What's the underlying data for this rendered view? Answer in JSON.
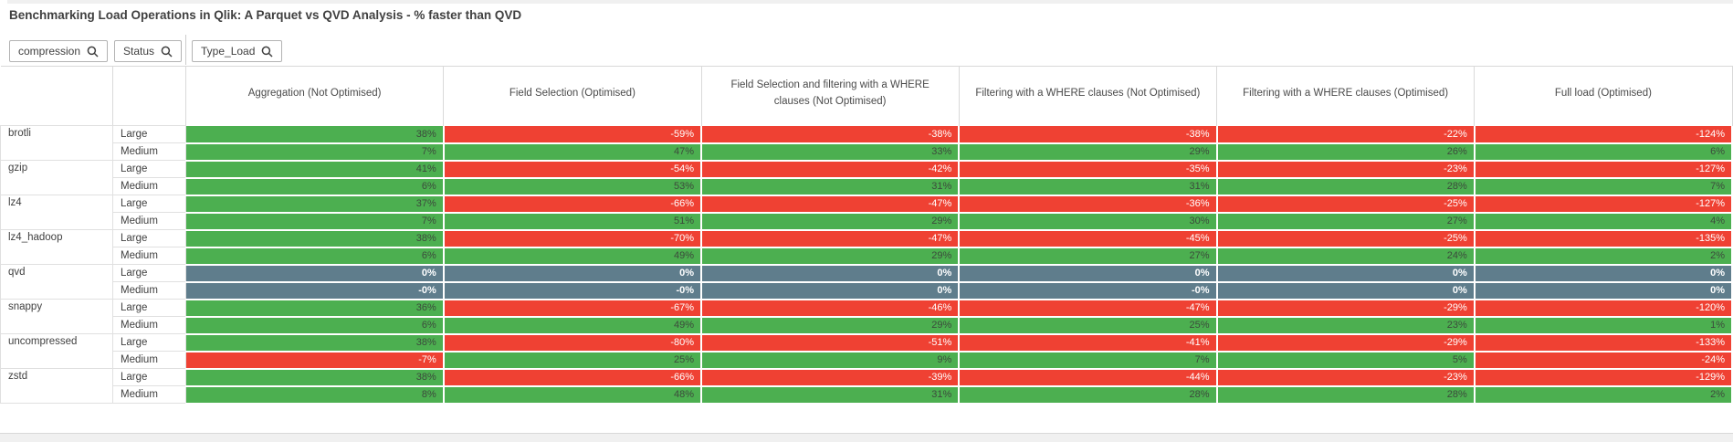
{
  "title": "Benchmarking Load Operations in Qlik: A Parquet vs QVD Analysis - % faster than QVD",
  "filters": {
    "compression": "compression",
    "status": "Status",
    "type_load": "Type_Load"
  },
  "colors": {
    "positive": "#4caf50",
    "negative": "#ef4133",
    "baseline": "#5f7d8c"
  },
  "baseline_group": "qvd",
  "table": {
    "columns": [
      "Aggregation (Not Optimised)",
      "Field Selection (Optimised)",
      "Field Selection and filtering with a WHERE clauses (Not Optimised)",
      "Filtering with a WHERE clauses (Not Optimised)",
      "Filtering with a WHERE clauses (Optimised)",
      "Full load (Optimised)"
    ],
    "groups": [
      {
        "compression": "brotli",
        "rows": [
          {
            "status": "Large",
            "values": [
              "38%",
              "-59%",
              "-38%",
              "-38%",
              "-22%",
              "-124%"
            ]
          },
          {
            "status": "Medium",
            "values": [
              "7%",
              "47%",
              "33%",
              "29%",
              "26%",
              "6%"
            ]
          }
        ]
      },
      {
        "compression": "gzip",
        "rows": [
          {
            "status": "Large",
            "values": [
              "41%",
              "-54%",
              "-42%",
              "-35%",
              "-23%",
              "-127%"
            ]
          },
          {
            "status": "Medium",
            "values": [
              "6%",
              "53%",
              "31%",
              "31%",
              "28%",
              "7%"
            ]
          }
        ]
      },
      {
        "compression": "lz4",
        "rows": [
          {
            "status": "Large",
            "values": [
              "37%",
              "-66%",
              "-47%",
              "-36%",
              "-25%",
              "-127%"
            ]
          },
          {
            "status": "Medium",
            "values": [
              "7%",
              "51%",
              "29%",
              "30%",
              "27%",
              "4%"
            ]
          }
        ]
      },
      {
        "compression": "lz4_hadoop",
        "rows": [
          {
            "status": "Large",
            "values": [
              "38%",
              "-70%",
              "-47%",
              "-45%",
              "-25%",
              "-135%"
            ]
          },
          {
            "status": "Medium",
            "values": [
              "6%",
              "49%",
              "29%",
              "27%",
              "24%",
              "2%"
            ]
          }
        ]
      },
      {
        "compression": "qvd",
        "rows": [
          {
            "status": "Large",
            "values": [
              "0%",
              "0%",
              "0%",
              "0%",
              "0%",
              "0%"
            ]
          },
          {
            "status": "Medium",
            "values": [
              "-0%",
              "-0%",
              "0%",
              "-0%",
              "0%",
              "0%"
            ]
          }
        ]
      },
      {
        "compression": "snappy",
        "rows": [
          {
            "status": "Large",
            "values": [
              "36%",
              "-67%",
              "-46%",
              "-47%",
              "-29%",
              "-120%"
            ]
          },
          {
            "status": "Medium",
            "values": [
              "6%",
              "49%",
              "29%",
              "25%",
              "23%",
              "1%"
            ]
          }
        ]
      },
      {
        "compression": "uncompressed",
        "rows": [
          {
            "status": "Large",
            "values": [
              "38%",
              "-80%",
              "-51%",
              "-41%",
              "-29%",
              "-133%"
            ]
          },
          {
            "status": "Medium",
            "values": [
              "-7%",
              "25%",
              "9%",
              "7%",
              "5%",
              "-24%"
            ]
          }
        ]
      },
      {
        "compression": "zstd",
        "rows": [
          {
            "status": "Large",
            "values": [
              "38%",
              "-66%",
              "-39%",
              "-44%",
              "-23%",
              "-129%"
            ]
          },
          {
            "status": "Medium",
            "values": [
              "8%",
              "48%",
              "31%",
              "28%",
              "28%",
              "2%"
            ]
          }
        ]
      }
    ]
  }
}
